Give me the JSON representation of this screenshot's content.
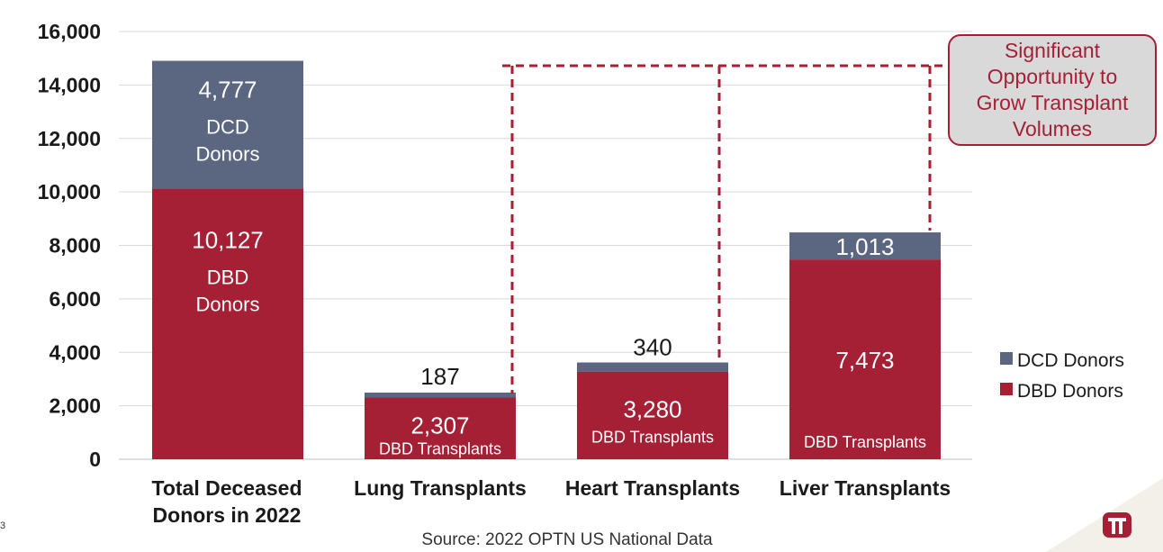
{
  "chart_data": {
    "type": "bar",
    "stacked": true,
    "categories": [
      "Total Deceased\nDonors in 2022",
      "Lung Transplants",
      "Heart Transplants",
      "Liver Transplants"
    ],
    "series": [
      {
        "name": "DBD Donors",
        "color": "#a51f35",
        "values": [
          10127,
          2307,
          3280,
          7473
        ]
      },
      {
        "name": "DCD Donors",
        "color": "#5b6780",
        "values": [
          4777,
          187,
          340,
          1013
        ]
      }
    ],
    "ylim": [
      0,
      16000
    ],
    "yticks": [
      0,
      2000,
      4000,
      6000,
      8000,
      10000,
      12000,
      14000,
      16000
    ],
    "ytick_labels": [
      "0",
      "2,000",
      "4,000",
      "6,000",
      "8,000",
      "10,000",
      "12,000",
      "14,000",
      "16,000"
    ],
    "grid": true,
    "legend": {
      "position": "right",
      "entries": [
        "DCD Donors",
        "DBD Donors"
      ]
    },
    "data_labels": {
      "dbd_values": [
        "10,127",
        "2,307",
        "3,280",
        "7,473"
      ],
      "dcd_values": [
        "4,777",
        "187",
        "340",
        "1,013"
      ],
      "total_dbd_caption": "DBD\nDonors",
      "total_dcd_caption": "DCD\nDonors",
      "transplant_caption": "DBD Transplants"
    },
    "annotation": "Significant\nOpportunity to\nGrow Transplant\nVolumes"
  },
  "source": "Source: 2022 OPTN US National Data",
  "page_number": "3",
  "colors": {
    "dbd": "#a51f35",
    "dcd": "#5b6780",
    "accent": "#a51f35"
  },
  "logo_icon": "hospital-logo-icon"
}
